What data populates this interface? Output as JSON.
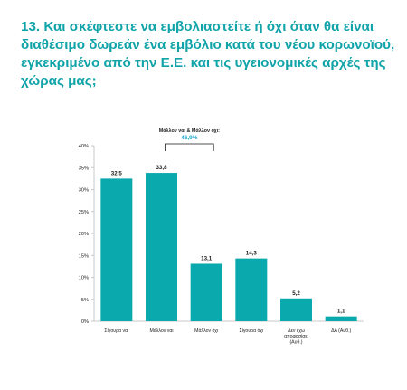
{
  "title": "13. Και σκέφτεστε να εμβολιαστείτε ή όχι όταν θα είναι διαθέσιμο δωρεάν ένα εμβόλιο κατά του νέου κορωνοϊού, εγκεκριμένο από την Ε.Ε. και τις υγειονομικές αρχές της χώρας μας;",
  "colors": {
    "title": "#10a3a8",
    "bar": "#0aa9ad",
    "highlight": "#1aa7c7",
    "text": "#1a1a1a",
    "axis": "#c8c8c8"
  },
  "chart_data": {
    "type": "bar",
    "categories": [
      "Σίγουρα ναι",
      "Μάλλον ναι",
      "Μάλλον όχι",
      "Σίγουρα όχι",
      [
        "Δεν έχω",
        "αποφασίσει",
        "(Αυθ.)"
      ],
      "ΔΑ (Αυθ.)"
    ],
    "values": [
      32.5,
      33.8,
      13.1,
      14.3,
      5.2,
      1.1
    ],
    "value_labels": [
      "32,5",
      "33,8",
      "13,1",
      "14,3",
      "5,2",
      "1,1"
    ],
    "ylim": [
      0,
      40
    ],
    "yticks": [
      0,
      5,
      10,
      15,
      20,
      25,
      30,
      35,
      40
    ],
    "ytick_labels": [
      "0%",
      "5%",
      "10%",
      "15%",
      "20%",
      "25%",
      "30%",
      "35%",
      "40%"
    ],
    "grid": false,
    "annotation": {
      "label": "Μάλλον ναι & Μάλλον όχι:",
      "value": "46,9%",
      "spans": [
        "Μάλλον ναι",
        "Μάλλον όχι"
      ]
    }
  }
}
